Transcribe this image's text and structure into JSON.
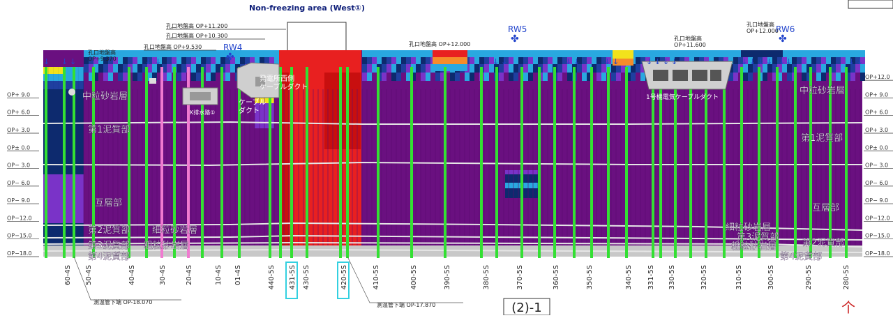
{
  "title": "Non-freezing area (West①)",
  "elevation_labels": [
    "OP+ 9.0",
    "OP+ 6.0",
    "OP+ 3.0",
    "OP± 0.0",
    "OP− 3.0",
    "OP− 6.0",
    "OP− 9.0",
    "OP−12.0",
    "OP−15.0",
    "OP−18.0"
  ],
  "right_elevation_labels": [
    "OP+12.0",
    "OP+ 9.0",
    "OP+ 6.0",
    "OP+ 3.0",
    "OP± 0.0",
    "OP− 3.0",
    "OP− 6.0",
    "OP− 9.0",
    "OP−12.0",
    "OP−15.0",
    "OP−18.0"
  ],
  "strata_left": [
    "中粒砂岩層",
    "第1泥質部",
    "互層部",
    "第2泥質部",
    "細粒砂岩層",
    "第3泥質部",
    "粗粒砂岩層",
    "第4泥質部"
  ],
  "strata_right": [
    "中粒砂岩層",
    "第1泥質部",
    "互層部",
    "細粒砂岩層",
    "第3泥質部",
    "粗粒砂岩層",
    "第2泥質部",
    "第4泥質部"
  ],
  "ground_levels": [
    "孔口地盤高\nOP+9.370",
    "孔口地盤高 OP+9.530",
    "孔口地盤高 OP+10.300",
    "孔口地盤高 OP+11.200",
    "孔口地盤高 OP+12.000",
    "孔口地盤高\nOP+11.600",
    "孔口地盤高\nOP+12.000"
  ],
  "wells": [
    "RW4",
    "RW5",
    "RW6"
  ],
  "structures": [
    "K排水路①",
    "ケーブル\nダクト",
    "発電所西側\nケーブルダクト",
    "1号機電気ケーブルダクト"
  ],
  "notes": [
    "測温管下端 OP-18.070",
    "測温管下端 OP-17.870"
  ],
  "section_label": "(2)-1",
  "boreholes": [
    {
      "id": "60-4S",
      "hl": false
    },
    {
      "id": "50-4S",
      "hl": false
    },
    {
      "id": "40-4S",
      "hl": false
    },
    {
      "id": "30-4S",
      "hl": false
    },
    {
      "id": "20-4S",
      "hl": false
    },
    {
      "id": "10-4S",
      "hl": false
    },
    {
      "id": "01-4S",
      "hl": false
    },
    {
      "id": "440-5S",
      "hl": false
    },
    {
      "id": "431-5S",
      "hl": true
    },
    {
      "id": "430-5S",
      "hl": false
    },
    {
      "id": "420-5S",
      "hl": true
    },
    {
      "id": "410-5S",
      "hl": false
    },
    {
      "id": "400-5S",
      "hl": false
    },
    {
      "id": "390-5S",
      "hl": false
    },
    {
      "id": "380-5S",
      "hl": false
    },
    {
      "id": "370-5S",
      "hl": false
    },
    {
      "id": "360-5S",
      "hl": false
    },
    {
      "id": "350-5S",
      "hl": false
    },
    {
      "id": "340-5S",
      "hl": false
    },
    {
      "id": "331-5S",
      "hl": false
    },
    {
      "id": "330-5S",
      "hl": false
    },
    {
      "id": "320-5S",
      "hl": false
    },
    {
      "id": "310-5S",
      "hl": false
    },
    {
      "id": "300-5S",
      "hl": false
    },
    {
      "id": "290-5S",
      "hl": false
    },
    {
      "id": "280-5S",
      "hl": false
    }
  ],
  "colors": {
    "purple": "#6a1080",
    "navy": "#0d2a6e",
    "blue": "#1f3fa0",
    "violet": "#7a33c8",
    "cyan": "#29a8e0",
    "yellow": "#f2e21c",
    "orange": "#f58c2a",
    "red": "#e82020",
    "darkred": "#c80f0f",
    "green": "#33e033",
    "pink": "#f07ad0",
    "gray": "#c8c8c8",
    "highlight": "#33d0e0",
    "title": "#10207a",
    "well": "#2244cc"
  }
}
